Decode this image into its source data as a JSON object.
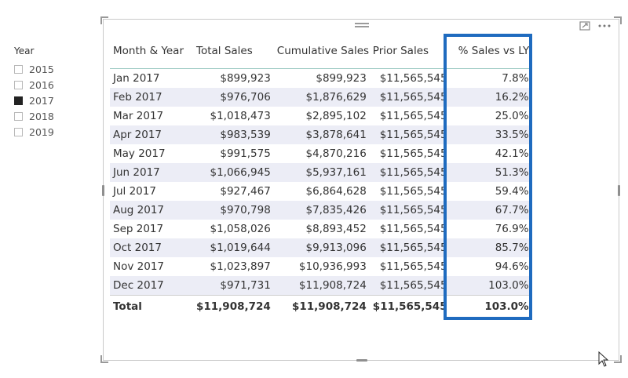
{
  "slicer": {
    "title": "Year",
    "items": [
      {
        "label": "2015",
        "checked": false
      },
      {
        "label": "2016",
        "checked": false
      },
      {
        "label": "2017",
        "checked": true
      },
      {
        "label": "2018",
        "checked": false
      },
      {
        "label": "2019",
        "checked": false
      }
    ]
  },
  "visual": {
    "icons": [
      "focus-mode-icon",
      "more-options-icon"
    ]
  },
  "table": {
    "headers": [
      "Month & Year",
      "Total Sales",
      "Cumulative Sales",
      "Prior Sales",
      "% Sales vs LY"
    ],
    "rows": [
      [
        "Jan 2017",
        "$899,923",
        "$899,923",
        "$11,565,545",
        "7.8%"
      ],
      [
        "Feb 2017",
        "$976,706",
        "$1,876,629",
        "$11,565,545",
        "16.2%"
      ],
      [
        "Mar 2017",
        "$1,018,473",
        "$2,895,102",
        "$11,565,545",
        "25.0%"
      ],
      [
        "Apr 2017",
        "$983,539",
        "$3,878,641",
        "$11,565,545",
        "33.5%"
      ],
      [
        "May 2017",
        "$991,575",
        "$4,870,216",
        "$11,565,545",
        "42.1%"
      ],
      [
        "Jun 2017",
        "$1,066,945",
        "$5,937,161",
        "$11,565,545",
        "51.3%"
      ],
      [
        "Jul 2017",
        "$927,467",
        "$6,864,628",
        "$11,565,545",
        "59.4%"
      ],
      [
        "Aug 2017",
        "$970,798",
        "$7,835,426",
        "$11,565,545",
        "67.7%"
      ],
      [
        "Sep 2017",
        "$1,058,026",
        "$8,893,452",
        "$11,565,545",
        "76.9%"
      ],
      [
        "Oct 2017",
        "$1,019,644",
        "$9,913,096",
        "$11,565,545",
        "85.7%"
      ],
      [
        "Nov 2017",
        "$1,023,897",
        "$10,936,993",
        "$11,565,545",
        "94.6%"
      ],
      [
        "Dec 2017",
        "$971,731",
        "$11,908,724",
        "$11,565,545",
        "103.0%"
      ]
    ],
    "total": [
      "Total",
      "$11,908,724",
      "$11,908,724",
      "$11,565,545",
      "103.0%"
    ]
  },
  "colors": {
    "highlight": "#1f6bbf",
    "row_stripe": "#ecedf6",
    "header_rule": "#9bc9c1"
  }
}
